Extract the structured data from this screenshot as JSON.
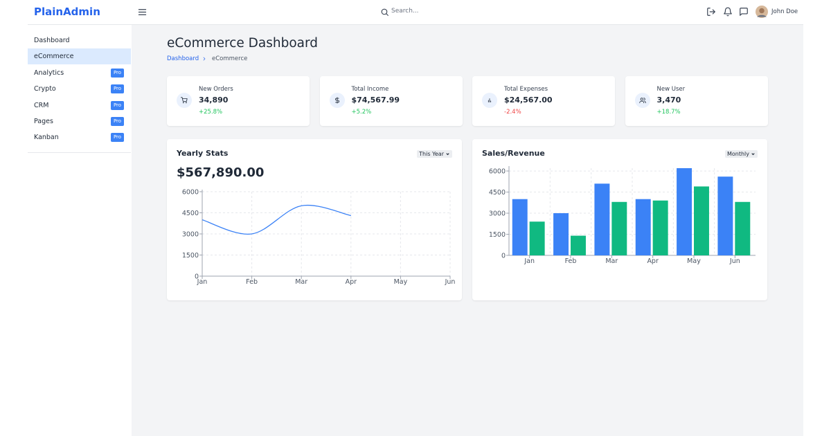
{
  "header": {
    "logo": "PlainAdmin",
    "search_placeholder": "Search...",
    "user": "John Doe"
  },
  "sidebar": {
    "items": [
      {
        "label": "Dashboard"
      },
      {
        "label": "eCommerce",
        "active": true
      },
      {
        "label": "Analytics",
        "badge": "Pro"
      },
      {
        "label": "Crypto",
        "badge": "Pro"
      },
      {
        "label": "CRM",
        "badge": "Pro"
      },
      {
        "label": "Pages",
        "badge": "Pro"
      },
      {
        "label": "Kanban",
        "badge": "Pro"
      }
    ]
  },
  "page": {
    "title": "eCommerce Dashboard",
    "breadcrumb": [
      "Dashboard",
      "eCommerce"
    ]
  },
  "stats": [
    {
      "label": "New Orders",
      "value": "34,890",
      "change": "+25.8%"
    },
    {
      "label": "Total Income",
      "value": "$74,567.99",
      "change": "+5.2%"
    },
    {
      "label": "Total Expenses",
      "value": "$24,567.00",
      "change": "-2.4%"
    },
    {
      "label": "New User",
      "value": "3,470",
      "change": "+18.7%"
    }
  ],
  "chart_data": [
    {
      "type": "line",
      "title": "Yearly Stats",
      "filter": "This Year",
      "total": "$567,890.00",
      "categories": [
        "Jan",
        "Feb",
        "Mar",
        "Apr",
        "May",
        "Jun"
      ],
      "values": [
        4000,
        3000,
        5000,
        4300,
        null,
        null
      ],
      "color": "#3b82f6",
      "ylim": [
        0,
        6000
      ],
      "yticks": [
        0,
        1500,
        3000,
        4500,
        6000
      ],
      "grid": true
    },
    {
      "type": "bar",
      "title": "Sales/Revenue",
      "filter": "Monthly",
      "categories": [
        "Jan",
        "Feb",
        "Mar",
        "Apr",
        "May",
        "Jun"
      ],
      "series": [
        {
          "color": "#3b82f6",
          "values": [
            4000,
            3000,
            5100,
            4000,
            6200,
            5600
          ]
        },
        {
          "color": "#10b981",
          "values": [
            2400,
            1400,
            3800,
            3900,
            4900,
            3800
          ]
        }
      ],
      "ylim": [
        0,
        6200
      ],
      "yticks": [
        0,
        1500,
        3000,
        4500,
        6000
      ],
      "grid": true
    }
  ]
}
